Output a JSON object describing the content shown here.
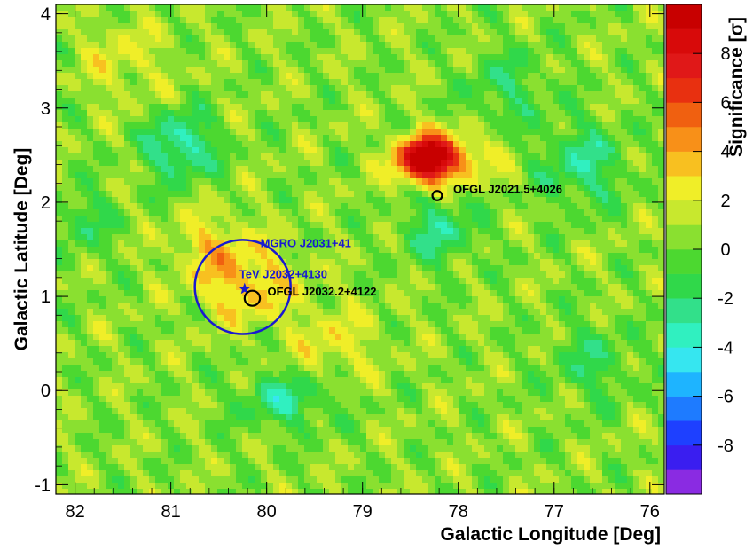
{
  "chart_data": {
    "type": "heatmap",
    "title": "",
    "xlabel": "Galactic Longitude [Deg]",
    "ylabel": "Galactic Latitude [Deg]",
    "colorbar_label": "Significance [σ]",
    "xlim": [
      82.2,
      75.85
    ],
    "ylim": [
      -1.1,
      4.1
    ],
    "zlim": [
      -10,
      10
    ],
    "x_axis_reversed": true,
    "x_ticks": [
      82,
      81,
      80,
      79,
      78,
      77,
      76
    ],
    "y_ticks": [
      -1,
      0,
      1,
      2,
      3,
      4
    ],
    "colorbar_ticks": [
      -8,
      -6,
      -4,
      -2,
      0,
      2,
      4,
      6,
      8
    ],
    "colorbar_colors": [
      "#8a2be2",
      "#3a1ef0",
      "#1e40ff",
      "#1e7bff",
      "#1eb4ff",
      "#36e6f0",
      "#30f0c0",
      "#32e08a",
      "#30d84a",
      "#4cd830",
      "#8ae030",
      "#c8e82e",
      "#f0ee28",
      "#f8c020",
      "#f89018",
      "#f06010",
      "#e83010",
      "#e01818",
      "#d80a0a",
      "#c80000"
    ],
    "background_level": 0.5,
    "hotspots": [
      {
        "l": 78.35,
        "b": 2.45,
        "significance": 9.5,
        "sigma_l": 0.2,
        "sigma_b": 0.17
      },
      {
        "l": 78.05,
        "b": 2.48,
        "significance": 3.5,
        "sigma_l": 0.3,
        "sigma_b": 0.18
      },
      {
        "l": 80.2,
        "b": 1.15,
        "significance": 3.0,
        "sigma_l": 0.35,
        "sigma_b": 0.3
      },
      {
        "l": 80.6,
        "b": 1.55,
        "significance": 2.0,
        "sigma_l": 0.25,
        "sigma_b": 0.25
      },
      {
        "l": 79.3,
        "b": 0.5,
        "significance": 1.8,
        "sigma_l": 0.3,
        "sigma_b": 0.3
      },
      {
        "l": 81.5,
        "b": 3.5,
        "significance": 1.5,
        "sigma_l": 0.3,
        "sigma_b": 0.3
      }
    ],
    "coldspots": [
      {
        "l": 80.9,
        "b": 2.6,
        "significance": -4.0,
        "sigma_l": 0.25,
        "sigma_b": 0.25
      },
      {
        "l": 79.8,
        "b": -0.1,
        "significance": -3.0,
        "sigma_l": 0.35,
        "sigma_b": 0.2
      },
      {
        "l": 78.2,
        "b": 1.7,
        "significance": -3.0,
        "sigma_l": 0.25,
        "sigma_b": 0.25
      },
      {
        "l": 76.7,
        "b": 2.4,
        "significance": -3.0,
        "sigma_l": 0.3,
        "sigma_b": 0.3
      },
      {
        "l": 81.9,
        "b": 1.8,
        "significance": -2.0,
        "sigma_l": 0.2,
        "sigma_b": 0.25
      },
      {
        "l": 76.6,
        "b": 0.3,
        "significance": -2.0,
        "sigma_l": 0.3,
        "sigma_b": 0.3
      },
      {
        "l": 77.5,
        "b": 3.2,
        "significance": -2.0,
        "sigma_l": 0.3,
        "sigma_b": 0.3
      }
    ],
    "sources": [
      {
        "name": "MGRO J2031+41",
        "l": 80.25,
        "b": 1.1,
        "radius_deg": 0.5,
        "color": "#1a1ad0"
      },
      {
        "name": "TeV J2032+4130",
        "l": 80.23,
        "b": 1.08,
        "color": "#1a1ad0"
      },
      {
        "name": "OFGL J2032.2+4122",
        "l": 80.15,
        "b": 0.98,
        "radius_deg": 0.08,
        "color": "#000000"
      },
      {
        "name": "OFGL J2021.5+4026",
        "l": 78.22,
        "b": 2.07,
        "radius_deg": 0.05,
        "color": "#000000"
      }
    ]
  }
}
